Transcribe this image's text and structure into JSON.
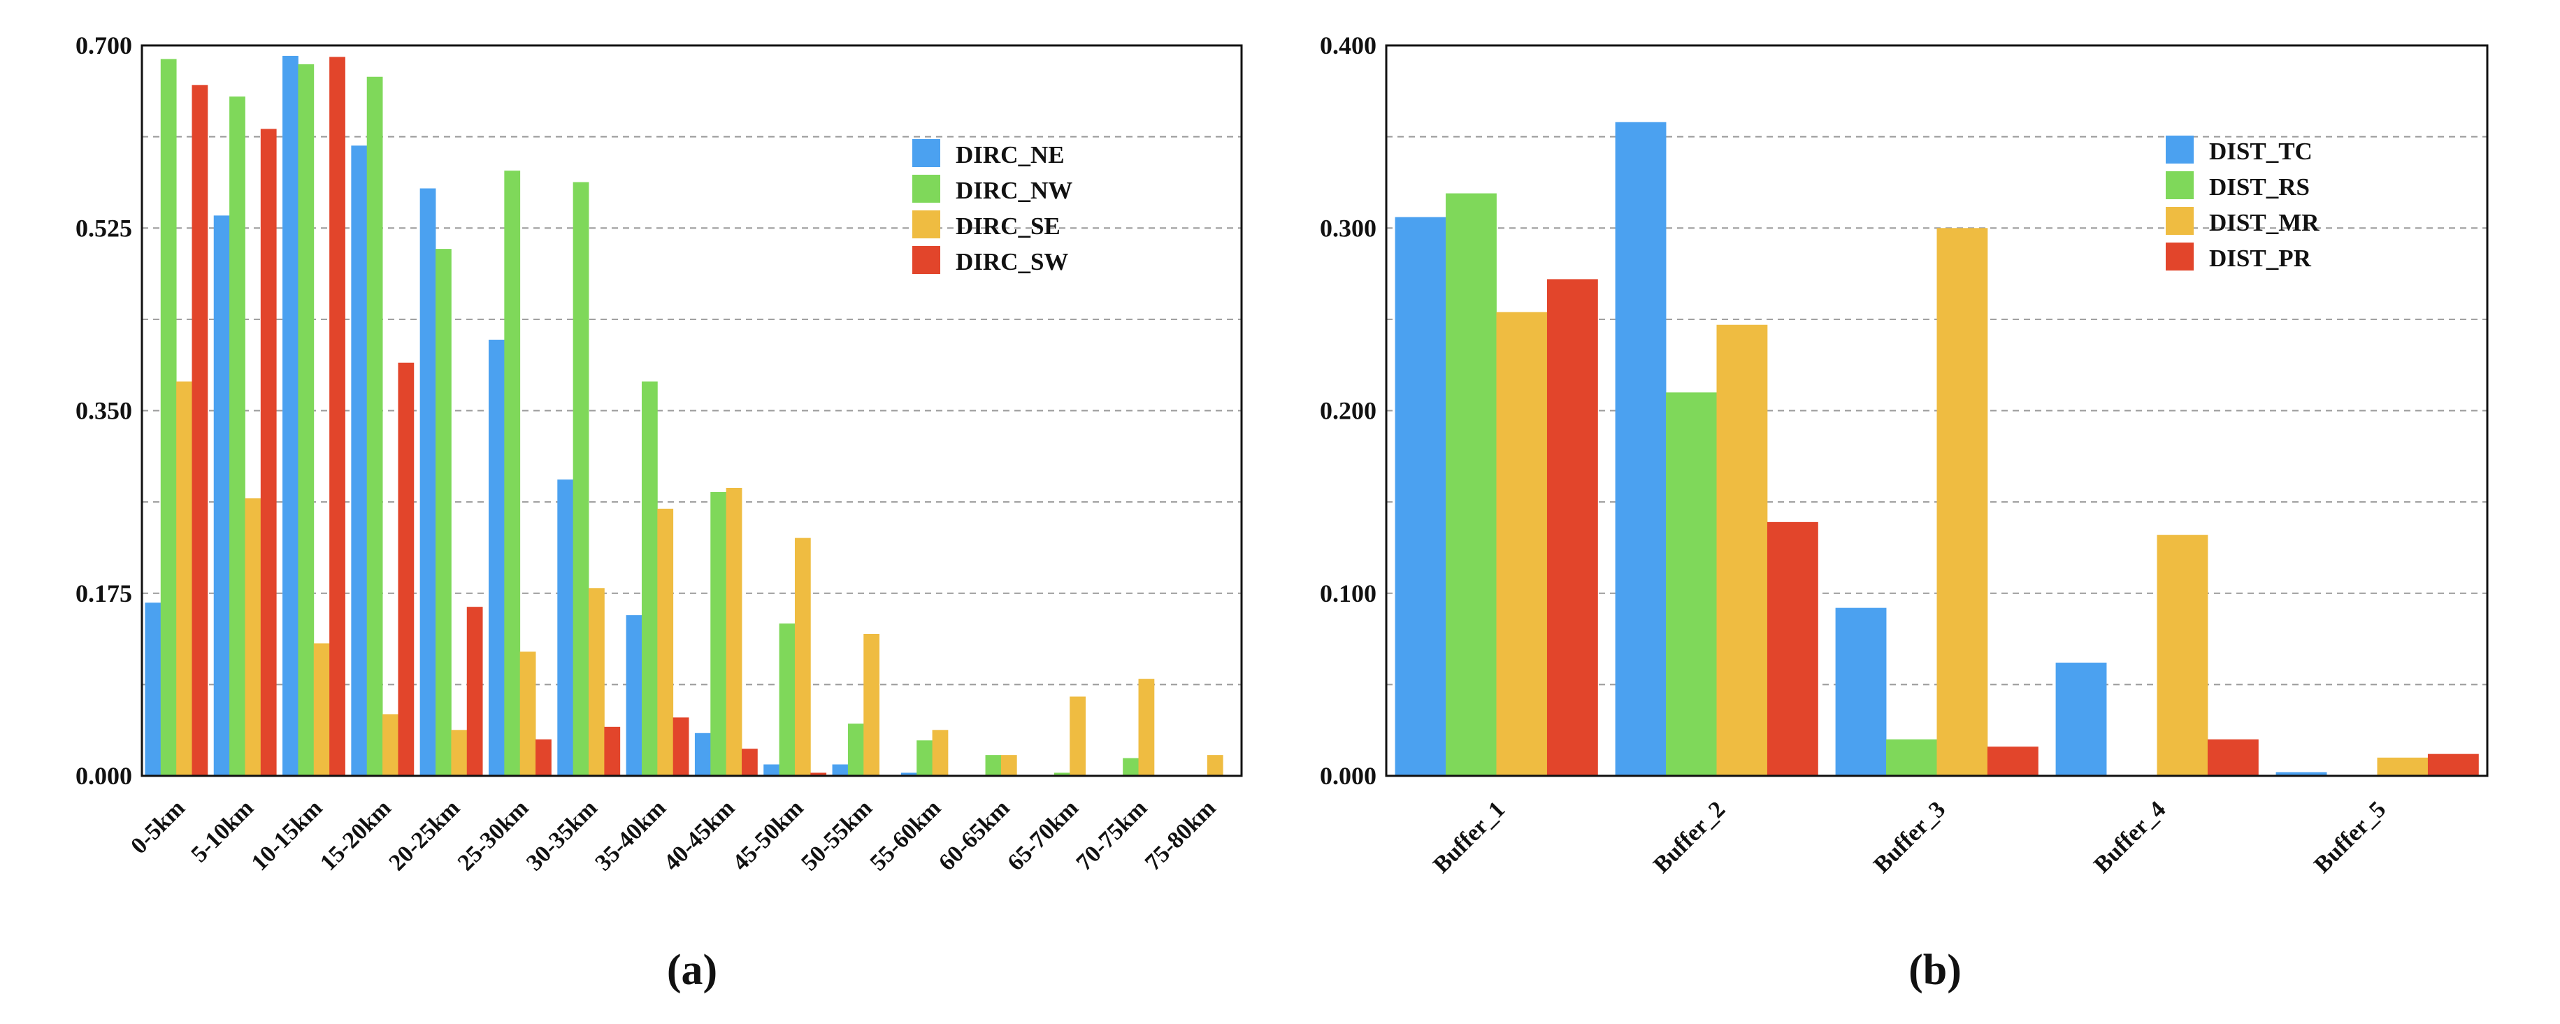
{
  "colors": {
    "blue": "#4ba1f0",
    "green": "#7fd85a",
    "yellow": "#efbc41",
    "red": "#e2452b"
  },
  "chart_data": [
    {
      "type": "bar",
      "panel_label": "(a)",
      "title": "",
      "xlabel": "",
      "ylabel": "",
      "ylim": [
        0,
        0.7
      ],
      "yticks": [
        "0.000",
        "0.175",
        "0.350",
        "0.525",
        "0.700"
      ],
      "grid": true,
      "legend_position": "top-right",
      "categories": [
        "0-5km",
        "5-10km",
        "10-15km",
        "15-20km",
        "20-25km",
        "25-30km",
        "30-35km",
        "35-40km",
        "40-45km",
        "45-50km",
        "50-55km",
        "55-60km",
        "60-65km",
        "65-70km",
        "70-75km",
        "75-80km"
      ],
      "series": [
        {
          "name": "DIRC_NE",
          "color": "#4ba1f0",
          "values": [
            0.166,
            0.537,
            0.69,
            0.604,
            0.563,
            0.418,
            0.284,
            0.154,
            0.041,
            0.011,
            0.011,
            0.003,
            0.0,
            0.0,
            0.0,
            0.0
          ]
        },
        {
          "name": "DIRC_NW",
          "color": "#7fd85a",
          "values": [
            0.687,
            0.651,
            0.682,
            0.67,
            0.505,
            0.58,
            0.569,
            0.378,
            0.272,
            0.146,
            0.05,
            0.034,
            0.02,
            0.003,
            0.017,
            0.0
          ]
        },
        {
          "name": "DIRC_SE",
          "color": "#efbc41",
          "values": [
            0.378,
            0.266,
            0.127,
            0.059,
            0.044,
            0.119,
            0.18,
            0.256,
            0.276,
            0.228,
            0.136,
            0.044,
            0.02,
            0.076,
            0.093,
            0.02
          ]
        },
        {
          "name": "DIRC_SW",
          "color": "#e2452b",
          "values": [
            0.662,
            0.62,
            0.689,
            0.396,
            0.162,
            0.035,
            0.047,
            0.056,
            0.026,
            0.003,
            0.0,
            0.0,
            0.0,
            0.0,
            0.0,
            0.0
          ]
        }
      ]
    },
    {
      "type": "bar",
      "panel_label": "(b)",
      "title": "",
      "xlabel": "",
      "ylabel": "",
      "ylim": [
        0,
        0.4
      ],
      "yticks": [
        "0.000",
        "0.100",
        "0.200",
        "0.300",
        "0.400"
      ],
      "grid": true,
      "legend_position": "top-right",
      "categories": [
        "Buffer_1",
        "Buffer_2",
        "Buffer_3",
        "Buffer_4",
        "Buffer_5"
      ],
      "series": [
        {
          "name": "DIST_TC",
          "color": "#4ba1f0",
          "values": [
            0.306,
            0.358,
            0.092,
            0.062,
            0.002
          ]
        },
        {
          "name": "DIST_RS",
          "color": "#7fd85a",
          "values": [
            0.319,
            0.21,
            0.02,
            0.0,
            0.0
          ]
        },
        {
          "name": "DIST_MR",
          "color": "#efbc41",
          "values": [
            0.254,
            0.247,
            0.3,
            0.132,
            0.01
          ]
        },
        {
          "name": "DIST_PR",
          "color": "#e2452b",
          "values": [
            0.272,
            0.139,
            0.016,
            0.02,
            0.012
          ]
        }
      ]
    }
  ]
}
